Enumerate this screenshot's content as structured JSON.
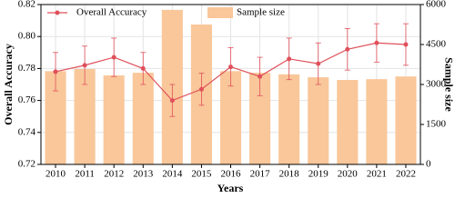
{
  "chart_data": {
    "type": "combo",
    "categories": [
      "2010",
      "2011",
      "2012",
      "2013",
      "2014",
      "2015",
      "2016",
      "2017",
      "2018",
      "2019",
      "2020",
      "2021",
      "2022"
    ],
    "series": [
      {
        "name": "Overall Accuracy",
        "type": "line",
        "color": "#e0505a",
        "axis": "y",
        "values": [
          0.778,
          0.782,
          0.787,
          0.78,
          0.76,
          0.767,
          0.781,
          0.775,
          0.786,
          0.783,
          0.792,
          0.796,
          0.795
        ],
        "errors": [
          0.012,
          0.012,
          0.012,
          0.01,
          0.01,
          0.01,
          0.012,
          0.012,
          0.013,
          0.013,
          0.013,
          0.012,
          0.013
        ]
      },
      {
        "name": "Sample size",
        "type": "bar",
        "color": "#f9c79a",
        "axis": "y2",
        "values": [
          3500,
          3580,
          3340,
          3440,
          5800,
          5250,
          3500,
          3440,
          3380,
          3270,
          3170,
          3200,
          3300
        ]
      }
    ],
    "xlabel": "Years",
    "ylabel": "Overall Accuracy",
    "y2label": "Sample size",
    "ylim": [
      0.72,
      0.82
    ],
    "yticks": [
      0.72,
      0.74,
      0.76,
      0.78,
      {
        "value": 0.8,
        "label": "0.80"
      },
      0.82
    ],
    "y2lim": [
      0,
      6000
    ],
    "y2ticks": [
      0,
      1500,
      3000,
      4500,
      6000
    ],
    "grid": true,
    "legend": "top"
  }
}
